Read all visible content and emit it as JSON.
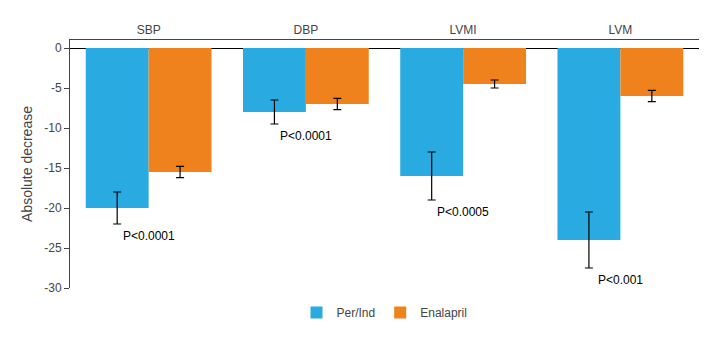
{
  "chart_data": {
    "type": "bar",
    "categories": [
      "SBP",
      "DBP",
      "LVMI",
      "LVM"
    ],
    "series": [
      {
        "name": "Per/Ind",
        "color": "#29ABE2",
        "values": [
          -20.0,
          -8.0,
          -16.0,
          -24.0
        ],
        "errors_low": [
          2.0,
          1.5,
          3.0,
          3.5
        ],
        "errors_high": [
          2.0,
          1.5,
          3.0,
          3.5
        ]
      },
      {
        "name": "Enalapril",
        "color": "#F0821D",
        "values": [
          -15.5,
          -7.0,
          -4.5,
          -6.0
        ],
        "errors_low": [
          0.7,
          0.7,
          0.5,
          0.7
        ],
        "errors_high": [
          0.7,
          0.7,
          0.5,
          0.7
        ]
      }
    ],
    "annotations": [
      {
        "category": "SBP",
        "text": "P<0.0001"
      },
      {
        "category": "DBP",
        "text": "P<0.0001"
      },
      {
        "category": "LVMI",
        "text": "P<0.0005"
      },
      {
        "category": "LVM",
        "text": "P<0.001"
      }
    ],
    "ylabel": "Absolute decrease",
    "ylim": [
      -30,
      1
    ],
    "yticks": [
      0,
      -5,
      -10,
      -15,
      -20,
      -25,
      -30
    ],
    "legend": "bottom",
    "grid": false
  }
}
